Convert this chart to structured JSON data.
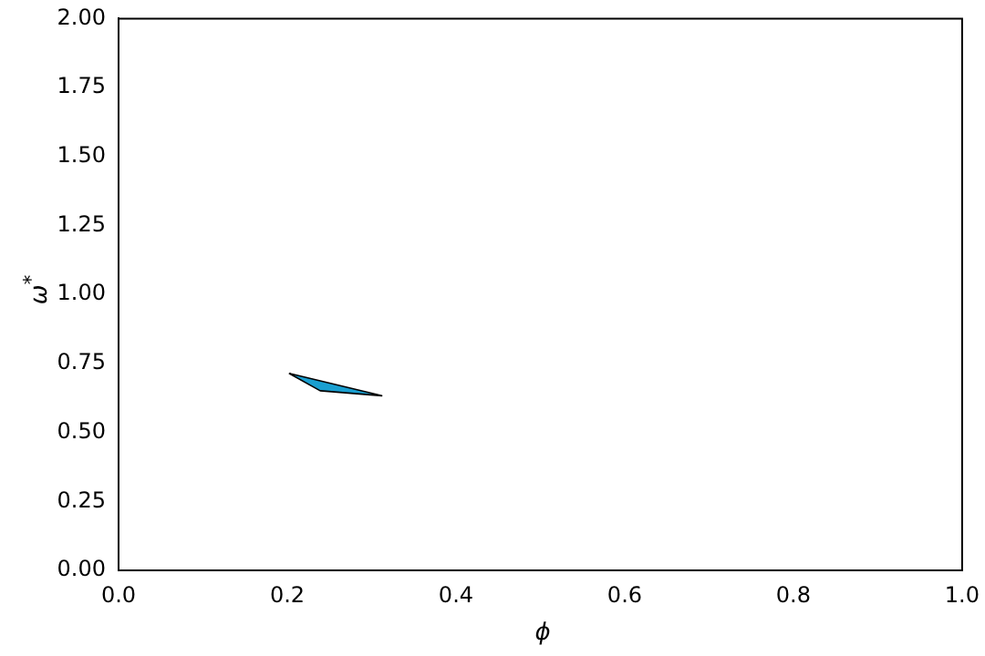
{
  "chart_data": {
    "type": "area",
    "xlabel": "ϕ",
    "ylabel": "ω$^{*}$",
    "series": [
      {
        "color": "#1a9fd0",
        "x": [
          0.202,
          0.312,
          0.239,
          0.202
        ],
        "values": [
          0.714,
          0.633,
          0.651,
          0.714
        ]
      }
    ],
    "xlim": [
      0,
      1
    ],
    "ylim": [
      0,
      2
    ],
    "xticks": [
      {
        "value": 0,
        "label": "0.0"
      },
      {
        "value": 0.2,
        "label": "0.2"
      },
      {
        "value": 0.4,
        "label": "0.4"
      },
      {
        "value": 0.6,
        "label": "0.6"
      },
      {
        "value": 0.8,
        "label": "0.8"
      },
      {
        "value": 1,
        "label": "1.0"
      }
    ],
    "yticks": [
      {
        "value": 0,
        "label": "0.00"
      },
      {
        "value": 0.25,
        "label": "0.25"
      },
      {
        "value": 0.5,
        "label": "0.50"
      },
      {
        "value": 0.75,
        "label": "0.75"
      },
      {
        "value": 1,
        "label": "1.00"
      },
      {
        "value": 1.25,
        "label": "1.25"
      },
      {
        "value": 1.5,
        "label": "1.50"
      },
      {
        "value": 1.75,
        "label": "1.75"
      },
      {
        "value": 2,
        "label": "2.00"
      }
    ],
    "grid": false,
    "legend": false
  }
}
